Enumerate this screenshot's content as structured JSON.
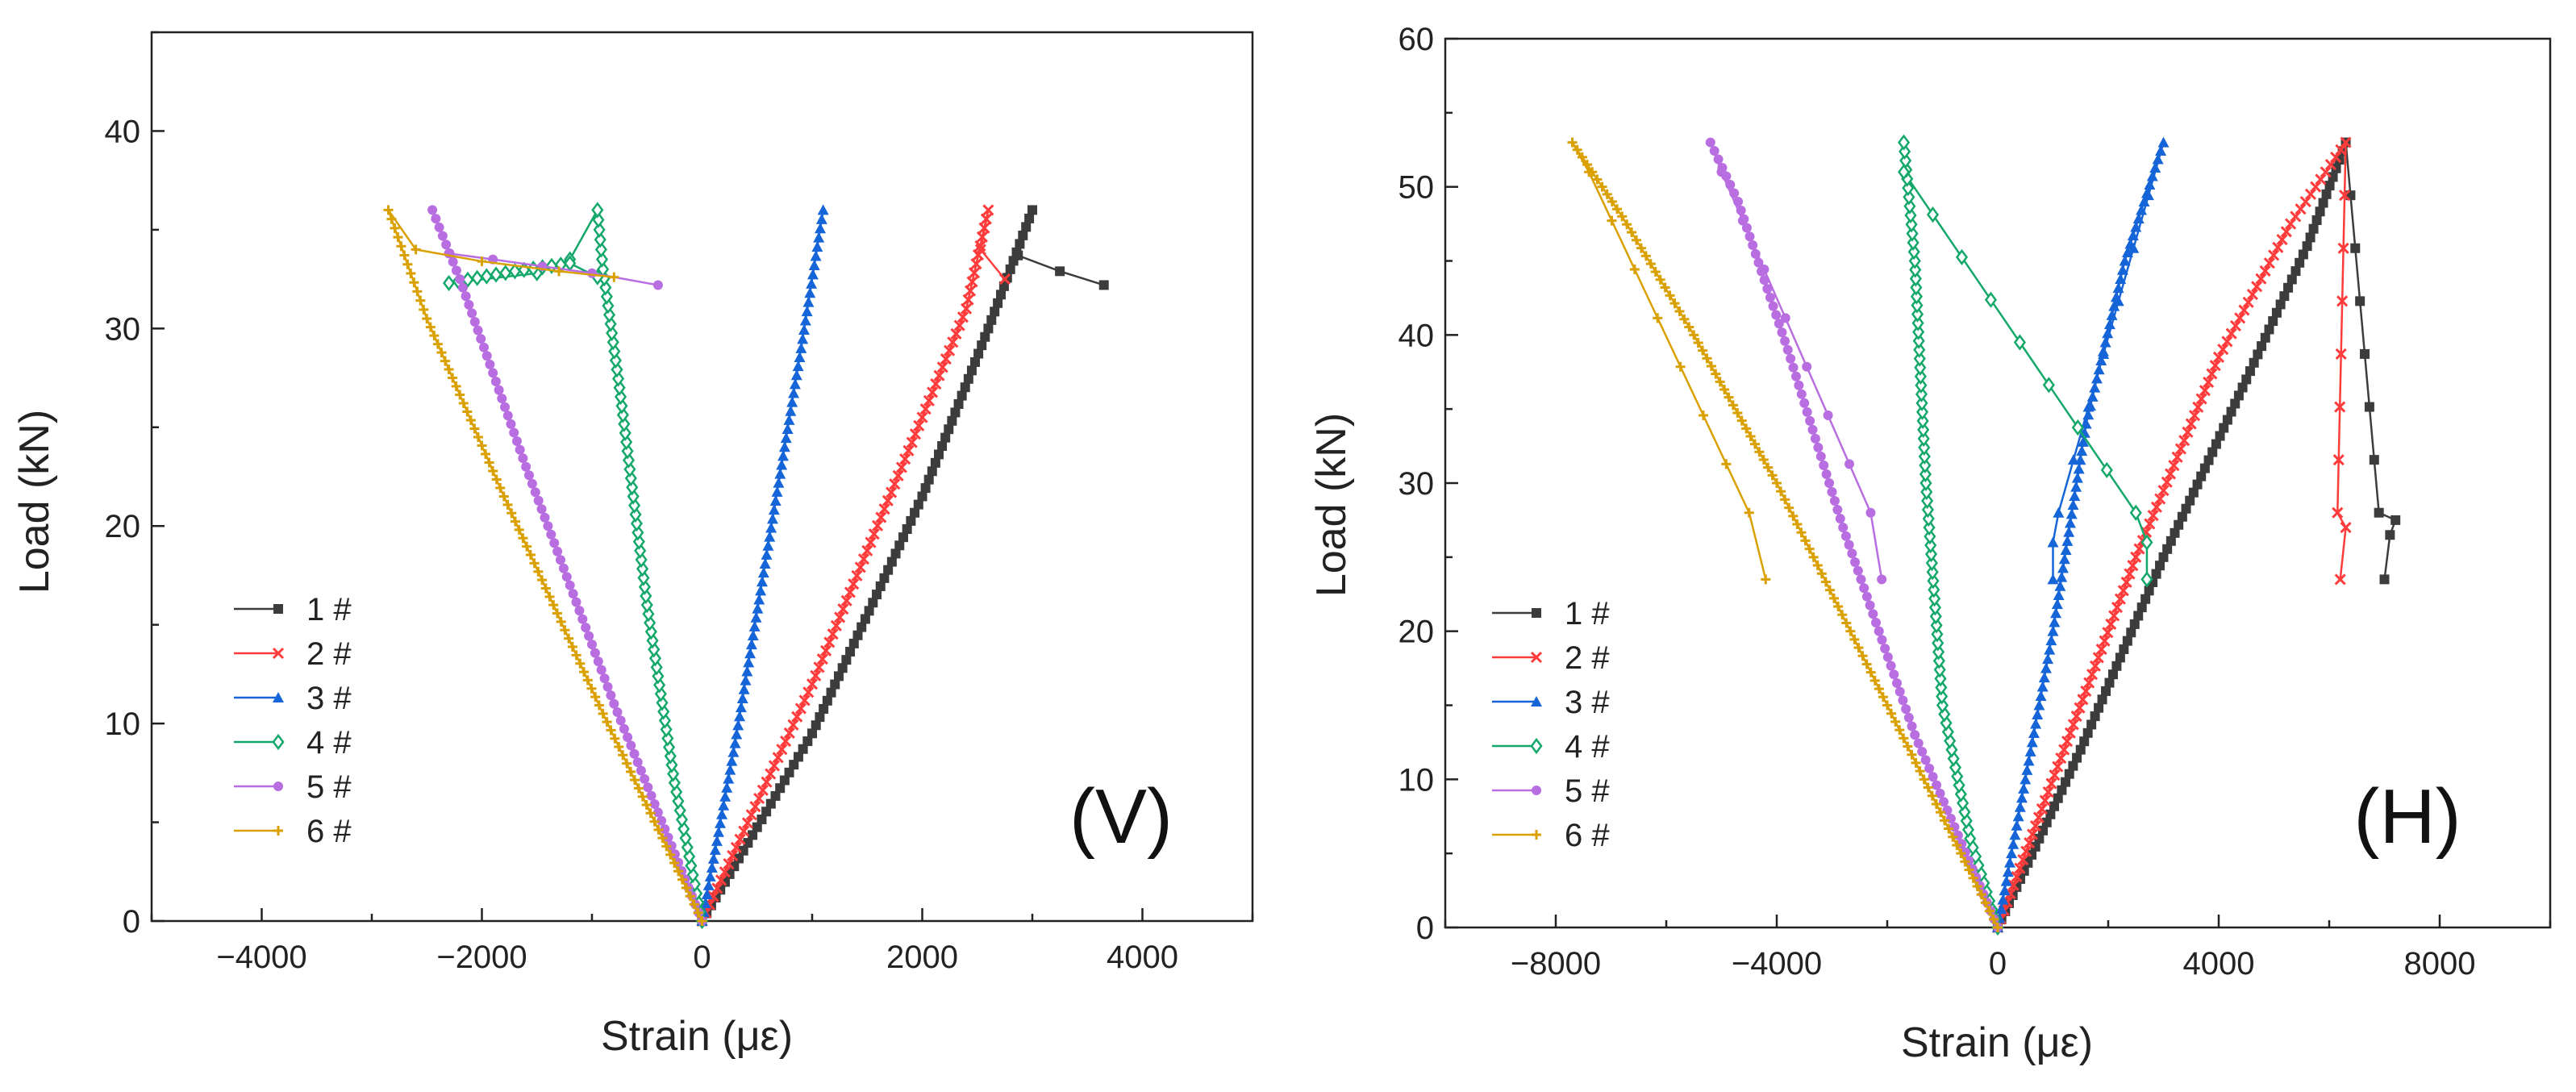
{
  "chart_data": [
    {
      "type": "line",
      "panel_label": "(V)",
      "xlabel": "Strain (με)",
      "ylabel": "Load (kN)",
      "xlim": [
        -5000,
        5000
      ],
      "ylim": [
        0,
        45
      ],
      "xticks": [
        -4000,
        -2000,
        0,
        2000,
        4000
      ],
      "yticks": [
        0,
        10,
        20,
        30,
        40
      ],
      "x_tick_labels": [
        "−4000",
        "−2000",
        "0",
        "2000",
        "4000"
      ],
      "y_tick_labels": [
        "0",
        "10",
        "20",
        "30",
        "40"
      ],
      "legend_position": "lower-left",
      "series": [
        {
          "name": "1 #",
          "color": "#3c3c3c",
          "marker": "square",
          "x": [
            0,
            1000,
            2000,
            2600,
            3000,
            2870,
            3250,
            3650
          ],
          "y": [
            0,
            9.5,
            21.5,
            30,
            36,
            33.7,
            32.9,
            32.2
          ]
        },
        {
          "name": "2 #",
          "color": "#ff3b3b",
          "marker": "x",
          "x": [
            0,
            1000,
            2000,
            2400,
            2600,
            2530,
            2750
          ],
          "y": [
            0,
            12,
            25.5,
            31,
            36,
            34,
            32.5
          ]
        },
        {
          "name": "3 #",
          "color": "#1565d8",
          "marker": "triangle",
          "x": [
            0,
            300,
            600,
            900,
            1100
          ],
          "y": [
            0,
            9,
            19,
            29,
            36
          ]
        },
        {
          "name": "4 #",
          "color": "#13a86a",
          "marker": "diamond",
          "x": [
            0,
            -250,
            -500,
            -750,
            -900,
            -950,
            -1200,
            -1500,
            -2300,
            -1700,
            -1200,
            -950
          ],
          "y": [
            0,
            7,
            16,
            27,
            33,
            36,
            33.5,
            32.8,
            32.3,
            32.9,
            33.3,
            32.6
          ]
        },
        {
          "name": "5 #",
          "color": "#b86ee0",
          "marker": "circle",
          "x": [
            0,
            -800,
            -1600,
            -2200,
            -2450,
            -2300,
            -1900,
            -1000,
            -400
          ],
          "y": [
            0,
            11,
            23,
            32.5,
            36,
            33.8,
            33.5,
            32.8,
            32.2
          ]
        },
        {
          "name": "6 #",
          "color": "#d9a000",
          "marker": "plus",
          "x": [
            0,
            -900,
            -1800,
            -2500,
            -2850,
            -2600,
            -2000,
            -1300,
            -800
          ],
          "y": [
            0,
            10.5,
            21.5,
            30.5,
            36,
            34,
            33.4,
            32.9,
            32.6
          ]
        }
      ]
    },
    {
      "type": "line",
      "panel_label": "(H)",
      "xlabel": "Strain (με)",
      "ylabel": "Load (kN)",
      "xlim": [
        -10000,
        10000
      ],
      "ylim": [
        0,
        60
      ],
      "xticks": [
        -8000,
        -4000,
        0,
        4000,
        8000
      ],
      "yticks": [
        0,
        10,
        20,
        30,
        40,
        50,
        60
      ],
      "x_tick_labels": [
        "−8000",
        "−4000",
        "0",
        "4000",
        "8000"
      ],
      "y_tick_labels": [
        "0",
        "10",
        "20",
        "30",
        "40",
        "50",
        "60"
      ],
      "legend_position": "lower-left",
      "series": [
        {
          "name": "1 #",
          "color": "#3c3c3c",
          "marker": "square",
          "x": [
            0,
            1500,
            3000,
            4500,
            5600,
            6300,
            6900,
            7200,
            7100,
            7000
          ],
          "y": [
            0,
            12,
            25,
            37,
            46,
            53,
            28,
            27.5,
            26.5,
            23.5
          ]
        },
        {
          "name": "2 #",
          "color": "#ff3b3b",
          "marker": "x",
          "x": [
            0,
            1200,
            2500,
            4000,
            5300,
            6300,
            6150,
            6300,
            6200
          ],
          "y": [
            0,
            12,
            25,
            38.5,
            47.5,
            53,
            28,
            27,
            23.5
          ]
        },
        {
          "name": "3 #",
          "color": "#1565d8",
          "marker": "triangle",
          "x": [
            0,
            500,
            1000,
            1600,
            2300,
            3000,
            1100,
            1000,
            1000
          ],
          "y": [
            0,
            10,
            20,
            34,
            45,
            53,
            28,
            26,
            23.5
          ]
        },
        {
          "name": "4 #",
          "color": "#13a86a",
          "marker": "diamond",
          "x": [
            0,
            -500,
            -1000,
            -1300,
            -1500,
            -1700,
            -1700,
            2500,
            2700,
            2700
          ],
          "y": [
            0,
            6,
            15,
            30,
            45,
            53,
            51,
            28,
            26,
            23.5
          ]
        },
        {
          "name": "5 #",
          "color": "#b86ee0",
          "marker": "circle",
          "x": [
            0,
            -1500,
            -2800,
            -3800,
            -4700,
            -5200,
            -5000,
            -2300,
            -2100
          ],
          "y": [
            0,
            13,
            27,
            39,
            49,
            53,
            51,
            28,
            23.5
          ]
        },
        {
          "name": "6 #",
          "color": "#d9a000",
          "marker": "plus",
          "x": [
            0,
            -2000,
            -4000,
            -5500,
            -6800,
            -7700,
            -7400,
            -4500,
            -4200
          ],
          "y": [
            0,
            15,
            30,
            40,
            48,
            53,
            51,
            28,
            23.5
          ]
        }
      ]
    }
  ]
}
